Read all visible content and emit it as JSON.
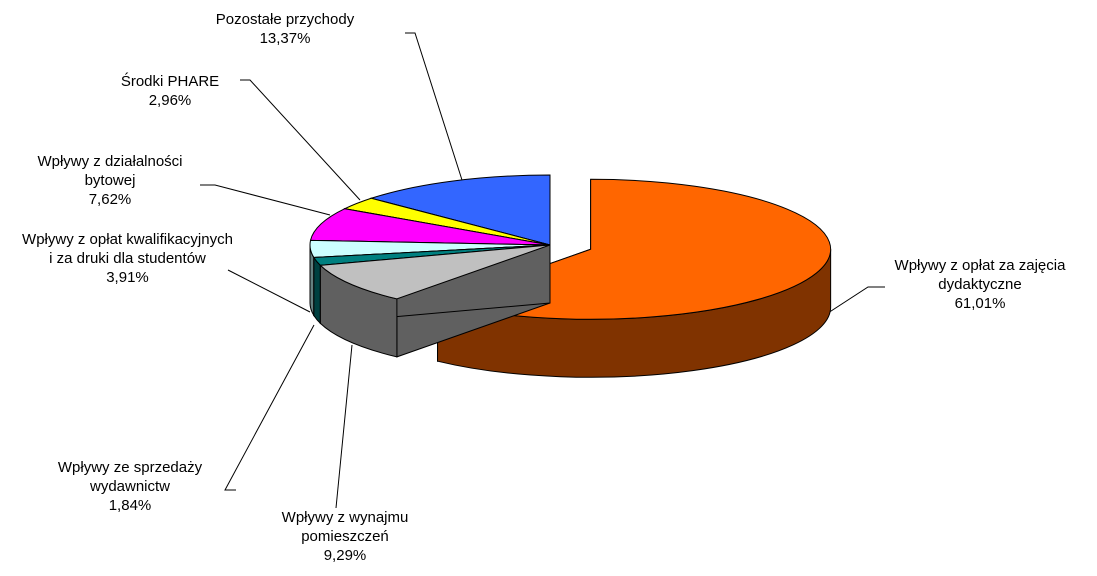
{
  "chart_data": {
    "type": "pie3d",
    "categories": [
      "Wpływy z opłat za zajęcia dydaktyczne",
      "Wpływy z wynajmu pomieszczeń",
      "Wpływy ze sprzedaży wydawnictw",
      "Wpływy z opłat kwalifikacyjnych i za druki dla studentów",
      "Wpływy z działalności bytowej",
      "Środki PHARE",
      "Pozostałe przychody"
    ],
    "values": [
      61.01,
      9.29,
      1.84,
      3.91,
      7.62,
      2.96,
      13.37
    ],
    "value_labels": [
      "61,01%",
      "9,29%",
      "1,84%",
      "3,91%",
      "7,62%",
      "2,96%",
      "13,37%"
    ],
    "colors": [
      "#ff6600",
      "#c0c0c0",
      "#008080",
      "#ccffff",
      "#ff00ff",
      "#ffff00",
      "#3366ff"
    ],
    "explode": [
      true,
      false,
      false,
      false,
      false,
      false,
      false
    ]
  }
}
